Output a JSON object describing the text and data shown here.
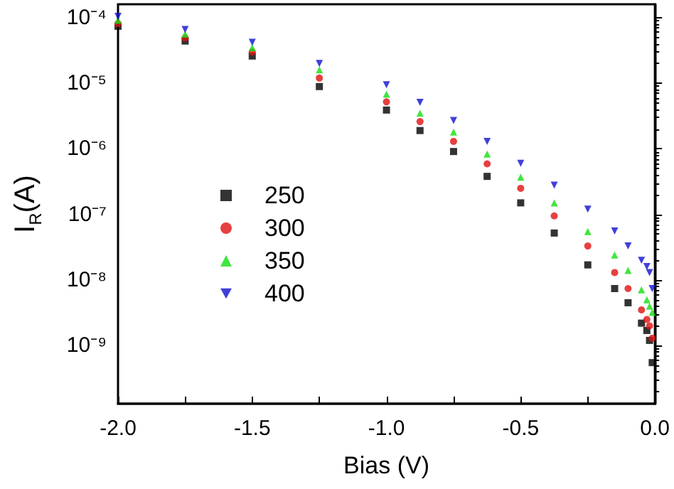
{
  "chart_data": {
    "type": "scatter",
    "xlabel": "Bias (V)",
    "ylabel": "I$_{R}$(A)",
    "log": "y",
    "x": [
      -2,
      -1.75,
      -1.5,
      -1.25,
      -1,
      -0.875,
      -0.75,
      -0.625,
      -0.5,
      -0.375,
      -0.25,
      -0.15,
      -0.1,
      -0.05,
      -0.03,
      -0.02,
      -0.01
    ],
    "series": [
      {
        "name": "250",
        "color": "#000000",
        "marker": "square",
        "values": [
          7.4e-05,
          4.4e-05,
          2.6e-05,
          8.9e-06,
          3.9e-06,
          1.9e-06,
          9.1e-07,
          3.8e-07,
          1.5e-07,
          5.2e-08,
          1.7e-08,
          7.4e-09,
          4.5e-09,
          2.2e-09,
          1.7e-09,
          1.2e-09,
          5.5e-10
        ]
      },
      {
        "name": "300",
        "color": "#e01010",
        "marker": "circle",
        "values": [
          8.1e-05,
          4.9e-05,
          3e-05,
          1.2e-05,
          5.2e-06,
          2.6e-06,
          1.3e-06,
          5.9e-07,
          2.5e-07,
          9.5e-08,
          3.3e-08,
          1.3e-08,
          7.4e-09,
          3.5e-09,
          2.5e-09,
          2e-09,
          1.3e-09
        ]
      },
      {
        "name": "350",
        "color": "#10e010",
        "marker": "triangle",
        "values": [
          9.1e-05,
          5.6e-05,
          3.5e-05,
          1.6e-05,
          6.8e-06,
          3.5e-06,
          1.8e-06,
          8.3e-07,
          3.7e-07,
          1.5e-07,
          5.5e-08,
          2.4e-08,
          1.4e-08,
          7.1e-09,
          5e-09,
          4e-09,
          3.2e-09
        ]
      },
      {
        "name": "400",
        "color": "#1010d0",
        "marker": "triangle-down",
        "values": [
          0.000105,
          6.6e-05,
          4.2e-05,
          2e-05,
          9.5e-06,
          5.1e-06,
          2.7e-06,
          1.3e-06,
          6e-07,
          2.8e-07,
          1.2e-07,
          5.6e-08,
          3.3e-08,
          2e-08,
          1.6e-08,
          1.3e-08,
          7.4e-09
        ]
      }
    ],
    "xlim": [
      -2,
      0
    ],
    "xticks": [
      {
        "value": -2,
        "label": "-2.0"
      },
      {
        "value": -1.75,
        "label": null
      },
      {
        "value": -1.5,
        "label": "-1.5"
      },
      {
        "value": -1.25,
        "label": null
      },
      {
        "value": -1,
        "label": "-1.0"
      },
      {
        "value": -0.75,
        "label": null
      },
      {
        "value": -0.5,
        "label": "-0.5"
      },
      {
        "value": -0.25,
        "label": null
      },
      {
        "value": 0,
        "label": "0.0"
      }
    ],
    "ylim": [
      1.3e-10,
      0.00016
    ],
    "yticks": [
      {
        "value": 1e-09,
        "label": "10⁻⁹"
      },
      {
        "value": 1e-08,
        "label": "10⁻⁸"
      },
      {
        "value": 1e-07,
        "label": "10⁻⁷"
      },
      {
        "value": 1e-06,
        "label": "10⁻⁶"
      },
      {
        "value": 1e-05,
        "label": "10⁻⁵"
      },
      {
        "value": 0.0001,
        "label": "10⁻⁴"
      }
    ],
    "legend": "left",
    "grid": false
  }
}
